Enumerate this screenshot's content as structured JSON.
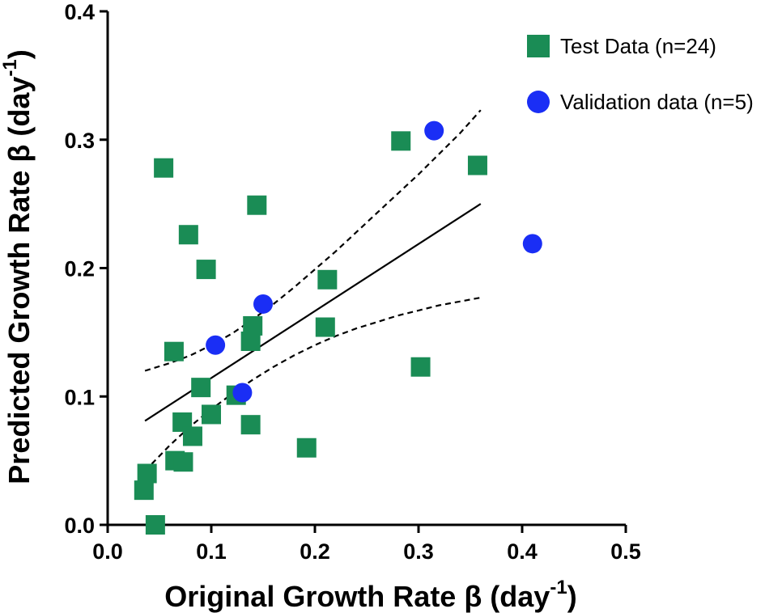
{
  "chart_data": {
    "type": "scatter",
    "xlabel": "Original Growth Rate β (day",
    "ylabel": "Predicted Growth Rate β (day",
    "unit_superscript": "-1",
    "unit_close": ")",
    "xlim": [
      0.0,
      0.5
    ],
    "ylim": [
      0.0,
      0.4
    ],
    "x_ticks": [
      0.0,
      0.1,
      0.2,
      0.3,
      0.4,
      0.5
    ],
    "x_tick_labels": [
      "0.0",
      "0.1",
      "0.2",
      "0.3",
      "0.4",
      "0.5"
    ],
    "y_ticks": [
      0.0,
      0.1,
      0.2,
      0.3,
      0.4
    ],
    "y_tick_labels": [
      "0.0",
      "0.1",
      "0.2",
      "0.3",
      "0.4"
    ],
    "series": [
      {
        "name": "Test Data (n=24)",
        "marker": "square",
        "color": "#1a8c55",
        "points": [
          {
            "x": 0.054,
            "y": 0.278
          },
          {
            "x": 0.144,
            "y": 0.249
          },
          {
            "x": 0.078,
            "y": 0.226
          },
          {
            "x": 0.095,
            "y": 0.199
          },
          {
            "x": 0.212,
            "y": 0.191
          },
          {
            "x": 0.14,
            "y": 0.155
          },
          {
            "x": 0.138,
            "y": 0.143
          },
          {
            "x": 0.21,
            "y": 0.154
          },
          {
            "x": 0.064,
            "y": 0.135
          },
          {
            "x": 0.283,
            "y": 0.299
          },
          {
            "x": 0.357,
            "y": 0.28
          },
          {
            "x": 0.302,
            "y": 0.123
          },
          {
            "x": 0.09,
            "y": 0.107
          },
          {
            "x": 0.124,
            "y": 0.101
          },
          {
            "x": 0.1,
            "y": 0.086
          },
          {
            "x": 0.072,
            "y": 0.08
          },
          {
            "x": 0.138,
            "y": 0.078
          },
          {
            "x": 0.082,
            "y": 0.069
          },
          {
            "x": 0.192,
            "y": 0.06
          },
          {
            "x": 0.065,
            "y": 0.05
          },
          {
            "x": 0.073,
            "y": 0.049
          },
          {
            "x": 0.038,
            "y": 0.04
          },
          {
            "x": 0.035,
            "y": 0.027
          },
          {
            "x": 0.046,
            "y": 0.0
          }
        ]
      },
      {
        "name": "Validation data (n=5)",
        "marker": "circle",
        "color": "#1a2ef5",
        "points": [
          {
            "x": 0.315,
            "y": 0.307
          },
          {
            "x": 0.41,
            "y": 0.219
          },
          {
            "x": 0.15,
            "y": 0.172
          },
          {
            "x": 0.104,
            "y": 0.14
          },
          {
            "x": 0.13,
            "y": 0.103
          }
        ]
      }
    ],
    "fit_line": {
      "name": "Regression fit",
      "x": [
        0.036,
        0.36
      ],
      "y": [
        0.081,
        0.25
      ]
    },
    "confidence_band": {
      "upper": {
        "x": [
          0.036,
          0.06,
          0.08,
          0.1,
          0.12,
          0.14,
          0.16,
          0.18,
          0.2,
          0.22,
          0.24,
          0.26,
          0.28,
          0.3,
          0.32,
          0.34,
          0.36
        ],
        "y": [
          0.12,
          0.126,
          0.132,
          0.14,
          0.149,
          0.16,
          0.172,
          0.185,
          0.199,
          0.213,
          0.228,
          0.243,
          0.258,
          0.273,
          0.289,
          0.305,
          0.323
        ]
      },
      "lower": {
        "x": [
          0.036,
          0.06,
          0.08,
          0.1,
          0.12,
          0.14,
          0.16,
          0.18,
          0.2,
          0.22,
          0.24,
          0.26,
          0.28,
          0.3,
          0.32,
          0.34,
          0.36
        ],
        "y": [
          0.042,
          0.062,
          0.077,
          0.09,
          0.102,
          0.113,
          0.123,
          0.132,
          0.14,
          0.147,
          0.153,
          0.158,
          0.163,
          0.167,
          0.171,
          0.174,
          0.177
        ]
      }
    },
    "legend_position": "top-right",
    "grid": false
  }
}
